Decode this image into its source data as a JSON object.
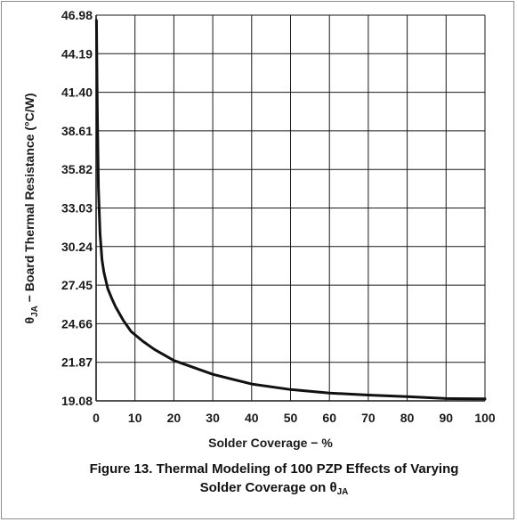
{
  "chart_data": {
    "type": "line",
    "title": "",
    "xlabel": "Solder Coverage − %",
    "ylabel_prefix": "θ",
    "ylabel_subscript": "JA",
    "ylabel_rest": " − Board Thermal Resistance (°C/W)",
    "xlim": [
      0,
      100
    ],
    "ylim": [
      19.08,
      46.98
    ],
    "x_ticks": [
      0,
      10,
      20,
      30,
      40,
      50,
      60,
      70,
      80,
      90,
      100
    ],
    "y_ticks": [
      "19.08",
      "21.87",
      "24.66",
      "27.45",
      "30.24",
      "33.03",
      "35.82",
      "38.61",
      "41.40",
      "44.19",
      "46.98"
    ],
    "grid": true,
    "series": [
      {
        "color": "#111111",
        "x": [
          0.1,
          0.3,
          0.6,
          1,
          1.5,
          2,
          3,
          4,
          5,
          7,
          9,
          12,
          15,
          20,
          25,
          30,
          40,
          50,
          60,
          70,
          80,
          90,
          100
        ],
        "y": [
          46.6,
          40.5,
          34.5,
          31.2,
          29.3,
          28.4,
          27.2,
          26.5,
          25.9,
          24.9,
          24.1,
          23.4,
          22.8,
          22.0,
          21.5,
          21.0,
          20.3,
          19.9,
          19.65,
          19.5,
          19.38,
          19.25,
          19.22
        ]
      }
    ]
  },
  "caption": {
    "line1": "Figure 13. Thermal Modeling of 100 PZP Effects of Varying",
    "line2_text": "Solder Coverage on θ",
    "line2_subscript": "JA"
  }
}
